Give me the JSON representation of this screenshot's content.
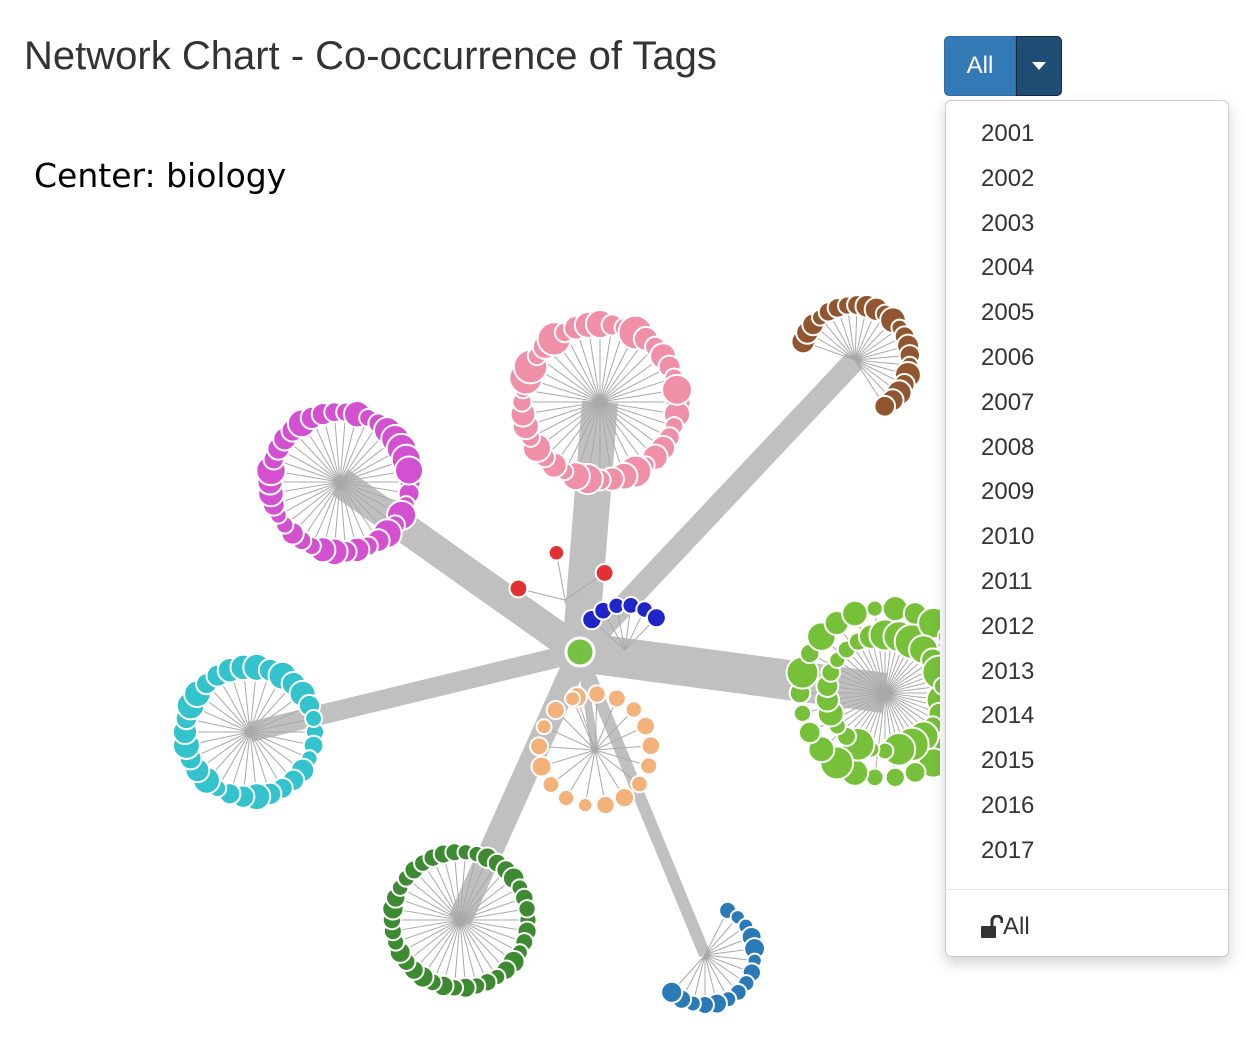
{
  "header": {
    "title": "Network Chart - Co-occurrence of Tags"
  },
  "center_label": "Center: biology",
  "year_filter": {
    "selected": "All",
    "options": [
      "2001",
      "2002",
      "2003",
      "2004",
      "2005",
      "2006",
      "2007",
      "2008",
      "2009",
      "2010",
      "2011",
      "2012",
      "2013",
      "2014",
      "2015",
      "2016",
      "2017"
    ],
    "all_label": "All",
    "all_icon": "unlock-icon"
  },
  "colors": {
    "button": "#337ab7",
    "button_caret": "#204d74",
    "edge": "#c0c0c0",
    "center_node": "#76c043"
  },
  "network": {
    "center": {
      "color": "#76c043"
    },
    "clusters": [
      {
        "name": "pink",
        "color": "#f08fa8",
        "nodes": 40
      },
      {
        "name": "magenta",
        "color": "#d350d0",
        "nodes": 38
      },
      {
        "name": "brown",
        "color": "#91562f",
        "nodes": 22
      },
      {
        "name": "green",
        "color": "#77c13a",
        "nodes": 52
      },
      {
        "name": "cyan",
        "color": "#33c3cc",
        "nodes": 30
      },
      {
        "name": "orange",
        "color": "#f2b27a",
        "nodes": 18
      },
      {
        "name": "dark-green",
        "color": "#3d8a32",
        "nodes": 38
      },
      {
        "name": "blue",
        "color": "#2a7ab8",
        "nodes": 15
      },
      {
        "name": "red",
        "color": "#e33030",
        "nodes": 3
      },
      {
        "name": "navy",
        "color": "#1f25c8",
        "nodes": 6
      }
    ]
  }
}
